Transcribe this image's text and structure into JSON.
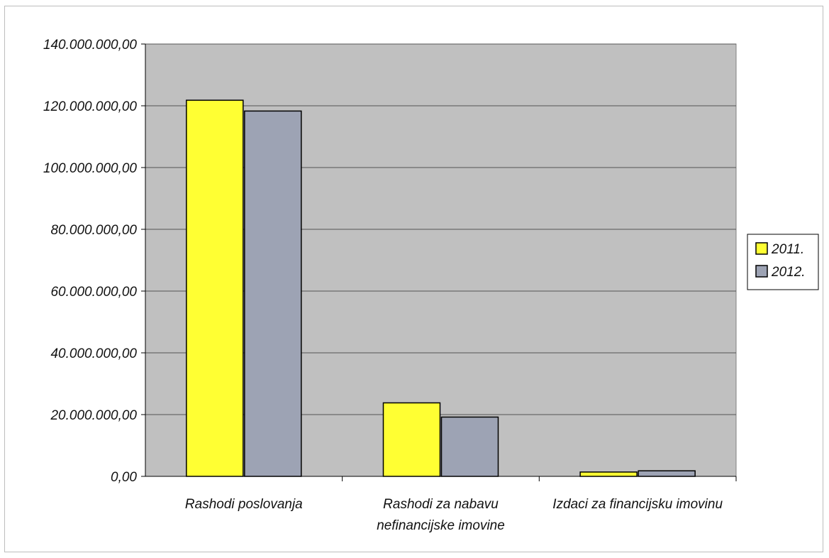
{
  "chart_data": {
    "type": "bar",
    "categories": [
      [
        "Rashodi poslovanja"
      ],
      [
        "Rashodi za nabavu",
        "nefinancijske imovine"
      ],
      [
        "Izdaci za financijsku imovinu"
      ]
    ],
    "series": [
      {
        "name": "2011.",
        "values": [
          121800000,
          23800000,
          1400000
        ],
        "color": "#ffff33"
      },
      {
        "name": "2012.",
        "values": [
          118300000,
          19200000,
          1800000
        ],
        "color": "#9da3b4"
      }
    ],
    "ylim": [
      0,
      140000000
    ],
    "yticks": [
      0,
      20000000,
      40000000,
      60000000,
      80000000,
      100000000,
      120000000,
      140000000
    ],
    "ytick_labels": [
      "0,00",
      "20.000.000,00",
      "40.000.000,00",
      "60.000.000,00",
      "80.000.000,00",
      "100.000.000,00",
      "120.000.000,00",
      "140.000.000,00"
    ],
    "grid": true,
    "legend": "right",
    "plot_background": "#c0c0c0",
    "title": "",
    "xlabel": "",
    "ylabel": ""
  }
}
